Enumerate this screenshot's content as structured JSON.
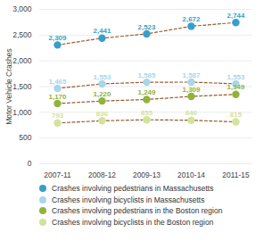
{
  "chart_data": {
    "type": "line",
    "categories": [
      "2007-11",
      "2008-12",
      "2009-13",
      "2010-14",
      "2011-15"
    ],
    "y_label": "Motor Vehicle Crashes",
    "ylim": [
      0,
      3000
    ],
    "yticks": [
      0,
      500,
      {
        "value": 1000,
        "label": "1,000"
      },
      {
        "value": 1500,
        "label": "1,500"
      },
      {
        "value": 2000,
        "label": "2,000"
      },
      {
        "value": 2500,
        "label": "2,500"
      },
      {
        "value": 3000,
        "label": "3,000"
      }
    ],
    "grid": true,
    "data_labels": true,
    "legend": "bottom",
    "marker": "circle",
    "line_style": "dashed",
    "series": [
      {
        "name": "Crashes involving pedestrians in Massachusetts",
        "color": "#3a9fc8",
        "values": [
          2309,
          2441,
          2523,
          2672,
          2744
        ],
        "value_labels": [
          "2,309",
          "2,441",
          "2,523",
          "2,672",
          "2,744"
        ]
      },
      {
        "name": "Crashes involving bicyclists in Massachusetts",
        "color": "#a9d6ea",
        "values": [
          1465,
          1553,
          1585,
          1587,
          1553
        ],
        "value_labels": [
          "1,465",
          "1,553",
          "1,585",
          "1,587",
          "1,553"
        ]
      },
      {
        "name": "Crashes involving pedestrians in the Boston region",
        "color": "#8fb33b",
        "values": [
          1170,
          1220,
          1249,
          1309,
          1349
        ],
        "value_labels": [
          "1,170",
          "1,220",
          "1,249",
          "1,309",
          "1,349"
        ]
      },
      {
        "name": "Crashes involving bicyclists in the Boston region",
        "color": "#d3e29c",
        "values": [
          793,
          836,
          855,
          846,
          815
        ],
        "value_labels": [
          "793",
          "836",
          "855",
          "846",
          "815"
        ]
      }
    ]
  }
}
